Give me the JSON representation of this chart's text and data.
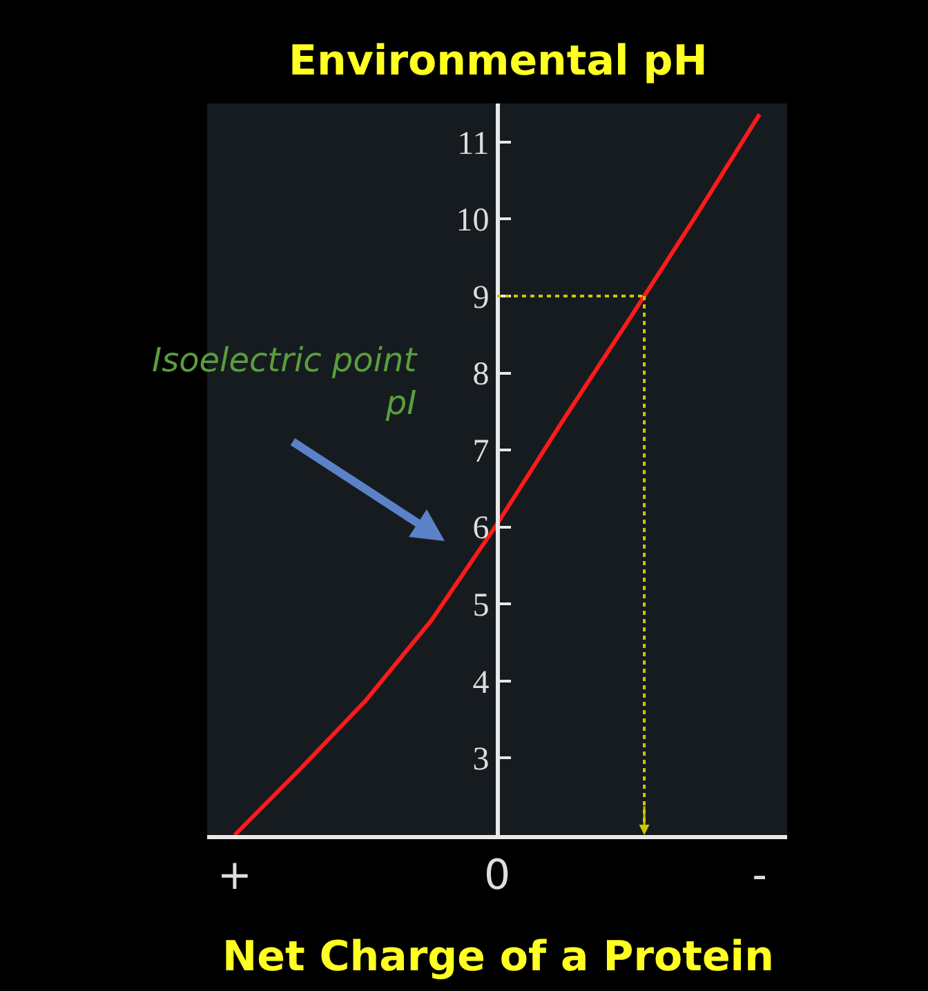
{
  "chart_data": {
    "type": "line",
    "xlabel": "Net Charge of a Protein",
    "ylabel": "Environmental pH",
    "categories": [
      "+",
      null,
      null,
      null,
      "0",
      null,
      null,
      null,
      "-"
    ],
    "series": [
      {
        "color": "#ff1a1a",
        "values": [
          2.0,
          2.86,
          3.75,
          4.79,
          6.04,
          7.38,
          8.68,
          10.0,
          11.36
        ]
      }
    ],
    "ylim": [
      2,
      11.5
    ],
    "yticks": [
      3,
      4,
      5,
      6,
      7,
      8,
      9,
      10,
      11
    ],
    "ref_lines": [
      {
        "axis": "y",
        "value": 9,
        "color": "#c8c800",
        "line_style": "dotted"
      }
    ],
    "annotations": [
      "Isoelectric point\npI"
    ],
    "marker": "none",
    "line_style": "solid"
  }
}
